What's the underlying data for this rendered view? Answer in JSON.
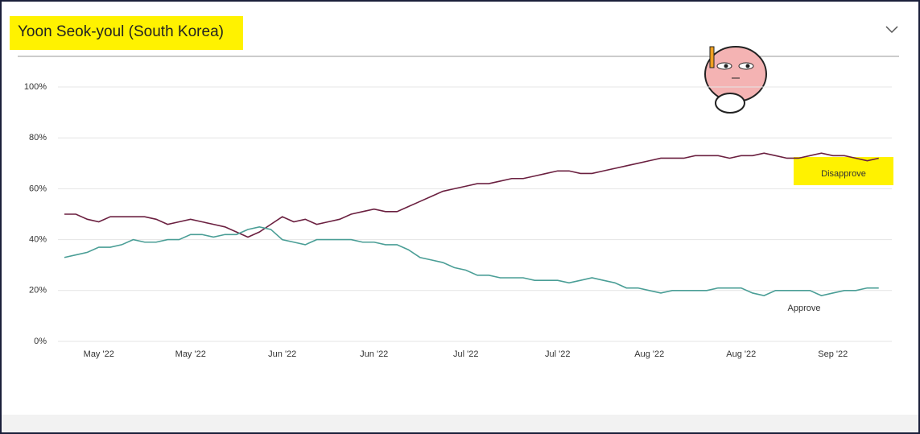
{
  "chart_data": {
    "type": "line",
    "title": "Yoon Seok-youl (South Korea)",
    "categories": [
      null,
      null,
      null,
      "May '22",
      null,
      null,
      null,
      null,
      null,
      null,
      null,
      "May '22",
      null,
      null,
      null,
      null,
      null,
      null,
      null,
      "Jun '22",
      null,
      null,
      null,
      null,
      null,
      null,
      null,
      "Jun '22",
      null,
      null,
      null,
      null,
      null,
      null,
      null,
      "Jul '22",
      null,
      null,
      null,
      null,
      null,
      null,
      null,
      "Jul '22",
      null,
      null,
      null,
      null,
      null,
      null,
      null,
      "Aug '22",
      null,
      null,
      null,
      null,
      null,
      null,
      null,
      "Aug '22",
      null,
      null,
      null,
      null,
      null,
      null,
      null,
      "Sep '22",
      null,
      null,
      null,
      null
    ],
    "series": [
      {
        "name": "Disapprove",
        "color": "#6b2040",
        "values": [
          50,
          50,
          48,
          47,
          49,
          49,
          49,
          49,
          48,
          46,
          47,
          48,
          47,
          46,
          45,
          43,
          41,
          43,
          46,
          49,
          47,
          48,
          46,
          47,
          48,
          50,
          51,
          52,
          51,
          51,
          53,
          55,
          57,
          59,
          60,
          61,
          62,
          62,
          63,
          64,
          64,
          65,
          66,
          67,
          67,
          66,
          66,
          67,
          68,
          69,
          70,
          71,
          72,
          72,
          72,
          73,
          73,
          73,
          72,
          73,
          73,
          74,
          73,
          72,
          72,
          73,
          74,
          73,
          73,
          72,
          71,
          72
        ]
      },
      {
        "name": "Approve",
        "color": "#4a9e96",
        "values": [
          33,
          34,
          35,
          37,
          37,
          38,
          40,
          39,
          39,
          40,
          40,
          42,
          42,
          41,
          42,
          42,
          44,
          45,
          44,
          40,
          39,
          38,
          40,
          40,
          40,
          40,
          39,
          39,
          38,
          38,
          36,
          33,
          32,
          31,
          29,
          28,
          26,
          26,
          25,
          25,
          25,
          24,
          24,
          24,
          23,
          24,
          25,
          24,
          23,
          21,
          21,
          20,
          19,
          20,
          20,
          20,
          20,
          21,
          21,
          21,
          19,
          18,
          20,
          20,
          20,
          20,
          18,
          19,
          20,
          20,
          21,
          21
        ]
      }
    ],
    "ylim": [
      0,
      100
    ],
    "yticks": [
      {
        "value": 0,
        "label": "0%"
      },
      {
        "value": 20,
        "label": "20%"
      },
      {
        "value": 40,
        "label": "40%"
      },
      {
        "value": 60,
        "label": "60%"
      },
      {
        "value": 80,
        "label": "80%"
      },
      {
        "value": 100,
        "label": "100%"
      }
    ],
    "grid": true
  }
}
